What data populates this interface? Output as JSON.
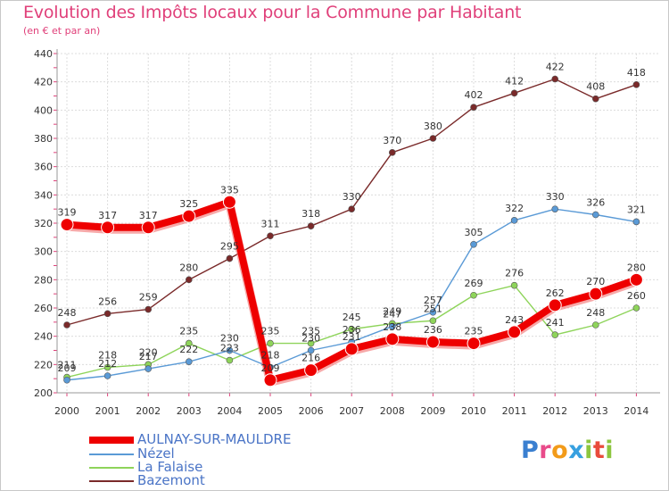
{
  "chart_data": {
    "type": "line",
    "title": "Evolution des Impôts locaux pour la Commune par Habitant",
    "subtitle": "(en € et par an)",
    "xlabel": "",
    "ylabel": "",
    "ylim": [
      200,
      440
    ],
    "yticks": [
      200,
      220,
      240,
      260,
      280,
      300,
      320,
      340,
      360,
      380,
      400,
      420,
      440
    ],
    "x": [
      "2000",
      "2001",
      "2002",
      "2003",
      "2004",
      "2005",
      "2006",
      "2007",
      "2008",
      "2009",
      "2010",
      "2011",
      "2012",
      "2013",
      "2014"
    ],
    "grid": true,
    "legend_position": "bottom-left",
    "series": [
      {
        "name": "AULNAY-SUR-MAULDRE",
        "color": "#ee0000",
        "values": [
          319,
          317,
          317,
          325,
          335,
          209,
          216,
          231,
          238,
          236,
          235,
          243,
          262,
          270,
          280
        ],
        "labels": [
          "319",
          "317",
          "317",
          "325",
          "335",
          "209",
          "216",
          "231",
          "238",
          "236",
          "235",
          "243",
          "262",
          "270",
          "280"
        ]
      },
      {
        "name": "Nézel",
        "color": "#5a9ad6",
        "values": [
          209,
          212,
          217,
          222,
          230,
          218,
          230,
          236,
          247,
          257,
          305,
          322,
          330,
          326,
          321
        ],
        "labels": [
          "209",
          "212",
          "217",
          "222",
          "230",
          "218",
          "230",
          "236",
          "247",
          "257",
          "305",
          "322",
          "330",
          "326",
          "321"
        ]
      },
      {
        "name": "La Falaise",
        "color": "#8ed45a",
        "values": [
          211,
          218,
          220,
          235,
          223,
          235,
          235,
          245,
          249,
          251,
          269,
          276,
          241,
          248,
          260
        ],
        "labels": [
          "211",
          "218",
          "220",
          "235",
          "223",
          "235",
          "235",
          "245",
          "249",
          "251",
          "269",
          "276",
          "241",
          "248",
          "260"
        ]
      },
      {
        "name": "Bazemont",
        "color": "#7a2a2a",
        "values": [
          248,
          256,
          259,
          280,
          295,
          311,
          318,
          330,
          370,
          380,
          402,
          412,
          422,
          408,
          418
        ],
        "labels": [
          "248",
          "256",
          "259",
          "280",
          "295",
          "311",
          "318",
          "330",
          "370",
          "380",
          "402",
          "412",
          "422",
          "408",
          "418"
        ]
      }
    ]
  },
  "logo": {
    "letters": [
      "P",
      "r",
      "o",
      "x",
      "i",
      "t",
      "i"
    ],
    "colors": [
      "#3a7fd0",
      "#e94b8a",
      "#f29b1a",
      "#37a0e0",
      "#8cc63f",
      "#e94b3c",
      "#8cc63f"
    ]
  }
}
